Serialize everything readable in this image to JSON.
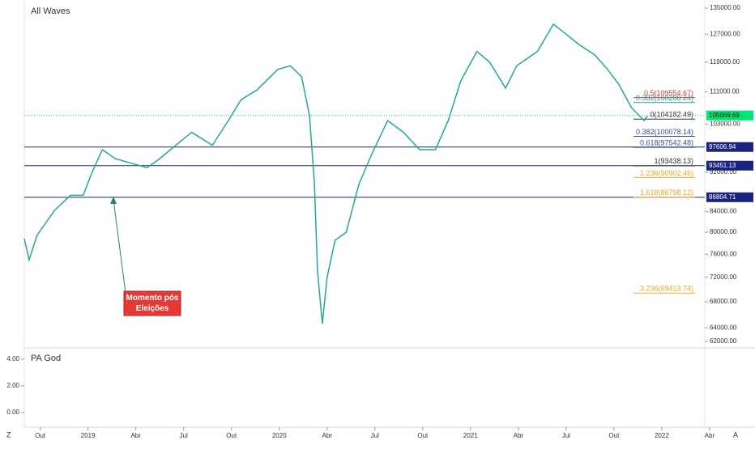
{
  "chart_data": {
    "type": "line",
    "title": "All Waves",
    "log_scale": true,
    "grid": false,
    "xlim": [
      -1,
      41.7
    ],
    "xticks": [
      {
        "value": 0,
        "label": "Out"
      },
      {
        "value": 3,
        "label": "2019"
      },
      {
        "value": 6,
        "label": "Abr"
      },
      {
        "value": 9,
        "label": "Jul"
      },
      {
        "value": 12,
        "label": "Out"
      },
      {
        "value": 15,
        "label": "2020"
      },
      {
        "value": 18,
        "label": "Abr"
      },
      {
        "value": 21,
        "label": "Jul"
      },
      {
        "value": 24,
        "label": "Out"
      },
      {
        "value": 27,
        "label": "2021"
      },
      {
        "value": 30,
        "label": "Abr"
      },
      {
        "value": 33,
        "label": "Jul"
      },
      {
        "value": 36,
        "label": "Out"
      },
      {
        "value": 39,
        "label": "2022"
      },
      {
        "value": 42,
        "label": "Abr"
      }
    ],
    "ylim": [
      62000,
      135000
    ],
    "yticks": [
      {
        "value": 135000,
        "label": "135000.00"
      },
      {
        "value": 127000,
        "label": "127000.00"
      },
      {
        "value": 119000,
        "label": "119000.00"
      },
      {
        "value": 111000,
        "label": "111000.00"
      },
      {
        "value": 103000,
        "label": "103000.00"
      },
      {
        "value": 92000,
        "label": "92000.00"
      },
      {
        "value": 84000,
        "label": "84000.00"
      },
      {
        "value": 80000,
        "label": "80000.00"
      },
      {
        "value": 76000,
        "label": "76000.00"
      },
      {
        "value": 72000,
        "label": "72000.00"
      },
      {
        "value": 68000,
        "label": "68000.00"
      },
      {
        "value": 64000,
        "label": "64000.00"
      },
      {
        "value": 62000,
        "label": "62000.00"
      }
    ],
    "x": [
      -1.0,
      -0.7,
      -0.2,
      0.9,
      1.9,
      2.7,
      3.2,
      3.9,
      4.7,
      5.7,
      6.7,
      7.5,
      8.5,
      9.5,
      10.8,
      11.8,
      12.6,
      13.6,
      14.9,
      15.7,
      16.4,
      16.9,
      17.2,
      17.4,
      17.7,
      18.0,
      18.5,
      19.2,
      20.0,
      20.8,
      21.8,
      22.8,
      23.8,
      24.8,
      25.6,
      26.4,
      27.4,
      28.2,
      29.2,
      29.9,
      31.2,
      32.2,
      33.0,
      33.8,
      34.8,
      35.6,
      36.3,
      37.1,
      37.9,
      38.1
    ],
    "series": [
      {
        "color": "#26a69a",
        "values": [
          78800,
          75000,
          79400,
          84200,
          87200,
          87200,
          91600,
          97000,
          95000,
          94000,
          93000,
          95000,
          98000,
          101000,
          98000,
          103800,
          109000,
          111500,
          117000,
          118000,
          115000,
          105000,
          90000,
          73000,
          64600,
          72000,
          78500,
          80000,
          89500,
          96000,
          103800,
          101000,
          97000,
          97000,
          103800,
          114000,
          122000,
          119000,
          112000,
          118000,
          122000,
          130000,
          127000,
          124000,
          121000,
          117000,
          113000,
          107000,
          103800,
          105000
        ]
      }
    ],
    "levels": [
      {
        "value": 105069.69,
        "label": "105069.69",
        "color": "#00e676",
        "style": "dotted"
      },
      {
        "value": 97606.94,
        "label": "97606.94",
        "color": "#1a237e",
        "style": "solid"
      },
      {
        "value": 93451.13,
        "label": "93451.13",
        "color": "#1a237e",
        "style": "solid"
      },
      {
        "value": 86804.71,
        "label": "86804.71",
        "color": "#1a237e",
        "style": "solid"
      }
    ],
    "fib": [
      {
        "value": 109554.67,
        "label": "0.5(109554.67)",
        "color": "#e53935"
      },
      {
        "value": 108288.24,
        "label": "0.382(108288.24)",
        "color": "#26a69a"
      },
      {
        "value": 104182.49,
        "label": "0(104182.49)",
        "color": "#333333"
      },
      {
        "value": 100078.14,
        "label": "0.382(100078.14)",
        "color": "#3949ab"
      },
      {
        "value": 97542.48,
        "label": "0.618(97542.48)",
        "color": "#3949ab"
      },
      {
        "value": 93438.13,
        "label": "1(93438.13)",
        "color": "#333333"
      },
      {
        "value": 90902.46,
        "label": "1.236(90902.46)",
        "color": "#f9a825"
      },
      {
        "value": 86798.12,
        "label": "1.618(86798.12)",
        "color": "#f9a825"
      },
      {
        "value": 69413.74,
        "label": "3.236(69413.74)",
        "color": "#f9a825"
      }
    ],
    "annotation": "Momento pós Eleições",
    "indicator": {
      "title": "PA God",
      "ylim": [
        -0.73,
        4.48
      ],
      "yticks": [
        {
          "value": 0,
          "label": "0.00"
        },
        {
          "value": 2,
          "label": "2.00"
        },
        {
          "value": 4,
          "label": "4.00"
        }
      ]
    }
  }
}
